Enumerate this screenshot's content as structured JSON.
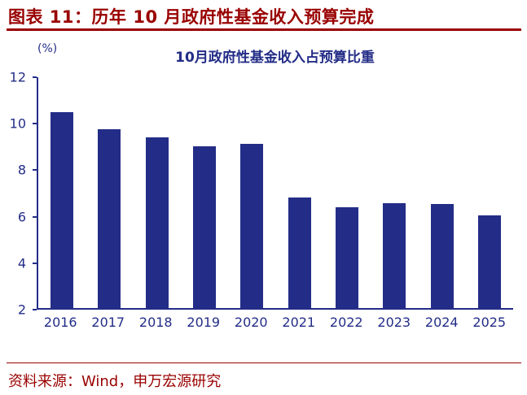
{
  "colors": {
    "accent_red": "#990000",
    "navy": "#232D87",
    "bar": "#232D87"
  },
  "header": {
    "title": "图表 11：历年 10 月政府性基金收入预算完成"
  },
  "footer": {
    "source": "资料来源：Wind，申万宏源研究"
  },
  "chart_data": {
    "type": "bar",
    "title": "10月政府性基金收入占预算比重",
    "unit_label": "(%)",
    "categories": [
      "2016",
      "2017",
      "2018",
      "2019",
      "2020",
      "2021",
      "2022",
      "2023",
      "2024",
      "2025"
    ],
    "values": [
      10.5,
      9.75,
      9.4,
      9.0,
      9.1,
      6.8,
      6.35,
      6.55,
      6.5,
      6.0
    ],
    "xlabel": "",
    "ylabel": "(%)",
    "ylim": [
      2,
      12
    ],
    "yticks": [
      2,
      4,
      6,
      8,
      10,
      12
    ],
    "grid": false,
    "legend_position": "none",
    "bar_color": "#232D87"
  }
}
